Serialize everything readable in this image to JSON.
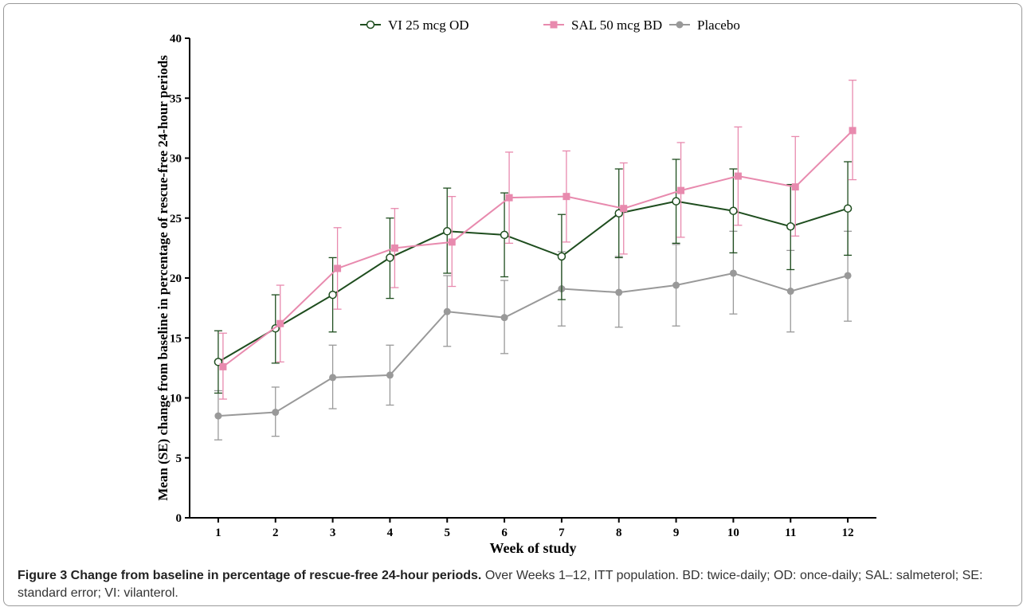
{
  "chart_data": {
    "type": "line",
    "xlabel": "Week of study",
    "ylabel": "Mean (SE) change from baseline in percentage of rescue-free 24-hour periods",
    "x": [
      1,
      2,
      3,
      4,
      5,
      6,
      7,
      8,
      9,
      10,
      11,
      12
    ],
    "x_tick_labels": [
      "1",
      "2",
      "3",
      "4",
      "5",
      "6",
      "7",
      "8",
      "9",
      "10",
      "11",
      "12"
    ],
    "xlim": [
      0.5,
      12.5
    ],
    "ylim": [
      0,
      40
    ],
    "y_ticks": [
      0,
      5,
      10,
      15,
      20,
      25,
      30,
      35,
      40
    ],
    "y_tick_labels": [
      "0",
      "5",
      "10",
      "15",
      "20",
      "25",
      "30",
      "35",
      "40"
    ],
    "grid": false,
    "legend_position": "top",
    "series": [
      {
        "name": "VI 25 mcg OD",
        "color": "#1e4d1e",
        "marker": "open-circle",
        "values": [
          13.0,
          15.8,
          18.6,
          21.7,
          23.9,
          23.6,
          21.8,
          25.4,
          26.4,
          25.6,
          24.3,
          25.8
        ],
        "err_upper": [
          15.6,
          18.6,
          21.7,
          25.0,
          27.5,
          27.1,
          25.3,
          29.1,
          29.9,
          29.1,
          27.8,
          29.7
        ],
        "err_lower": [
          10.4,
          12.9,
          15.5,
          18.3,
          20.4,
          20.1,
          18.2,
          21.7,
          22.9,
          22.1,
          20.7,
          21.9
        ]
      },
      {
        "name": "SAL 50 mcg BD",
        "color": "#e88aae",
        "marker": "square",
        "values": [
          12.6,
          16.2,
          20.8,
          22.5,
          23.0,
          26.7,
          26.8,
          25.8,
          27.3,
          28.5,
          27.6,
          32.3
        ],
        "err_upper": [
          15.4,
          19.4,
          24.2,
          25.8,
          26.8,
          30.5,
          30.6,
          29.6,
          31.3,
          32.6,
          31.8,
          36.5
        ],
        "err_lower": [
          9.9,
          13.0,
          17.4,
          19.2,
          19.3,
          22.9,
          23.0,
          22.0,
          23.4,
          24.4,
          23.5,
          28.2
        ]
      },
      {
        "name": "Placebo",
        "color": "#999999",
        "marker": "filled-circle",
        "values": [
          8.5,
          8.8,
          11.7,
          11.9,
          17.2,
          16.7,
          19.1,
          18.8,
          19.4,
          20.4,
          18.9,
          20.2
        ],
        "err_upper": [
          10.6,
          10.9,
          14.4,
          14.4,
          20.2,
          19.8,
          22.2,
          21.8,
          22.8,
          23.9,
          22.3,
          23.9
        ],
        "err_lower": [
          6.5,
          6.8,
          9.1,
          9.4,
          14.3,
          13.7,
          16.0,
          15.9,
          16.0,
          17.0,
          15.5,
          16.4
        ]
      }
    ]
  },
  "caption": {
    "title": "Figure 3 Change from baseline in percentage of rescue-free 24-hour periods.",
    "text": " Over Weeks 1–12, ITT population. BD: twice-daily; OD: once-daily; SAL: salmeterol; SE: standard error; VI: vilanterol."
  }
}
